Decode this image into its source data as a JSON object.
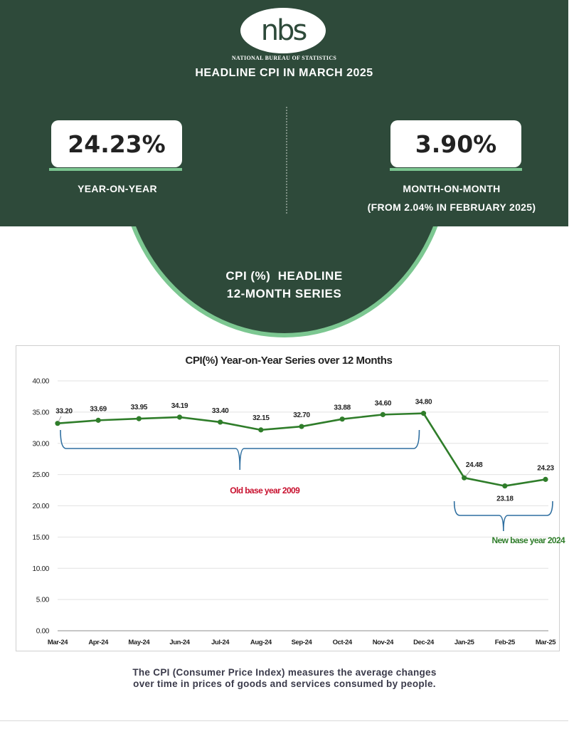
{
  "header": {
    "logo_text": "nbs",
    "org_name": "NATIONAL BUREAU OF STATISTICS",
    "title": "HEADLINE CPI IN MARCH 2025"
  },
  "kpis": {
    "yoy_value": "24.23%",
    "yoy_label": "YEAR-ON-YEAR",
    "mom_value": "3.90%",
    "mom_label": "MONTH-ON-MONTH",
    "mom_sublabel": "(FROM 2.04% IN FEBRUARY 2025)"
  },
  "series_banner": {
    "line1": "CPI (%)  HEADLINE",
    "line2": "12-MONTH SERIES"
  },
  "chart_data": {
    "type": "line",
    "title": "CPI(%) Year-on-Year Series over 12 Months",
    "xlabel": "",
    "ylabel": "",
    "categories": [
      "Mar-24",
      "Apr-24",
      "May-24",
      "Jun-24",
      "Jul-24",
      "Aug-24",
      "Sep-24",
      "Oct-24",
      "Nov-24",
      "Dec-24",
      "Jan-25",
      "Feb-25",
      "Mar-25"
    ],
    "values": [
      33.2,
      33.69,
      33.95,
      34.19,
      33.4,
      32.15,
      32.7,
      33.88,
      34.6,
      34.8,
      24.48,
      23.18,
      24.23
    ],
    "value_labels": [
      "33.20",
      "33.69",
      "33.95",
      "34.19",
      "33.40",
      "32.15",
      "32.70",
      "33.88",
      "34.60",
      "34.80",
      "24.48",
      "23.18",
      "24.23"
    ],
    "ylim": [
      0,
      40
    ],
    "yticks": [
      "0.00",
      "5.00",
      "10.00",
      "15.00",
      "20.00",
      "25.00",
      "30.00",
      "35.00",
      "40.00"
    ],
    "grid": true,
    "legend": "none",
    "line_color": "#2f7d2a",
    "annotations": [
      {
        "text": "Old base year 2009",
        "color": "#c8102e",
        "from": "Mar-24",
        "to": "Dec-24"
      },
      {
        "text": "New base year 2024",
        "color": "#2f7d2a",
        "from": "Jan-25",
        "to": "Mar-25"
      }
    ]
  },
  "footer": {
    "line1": "The CPI (Consumer Price Index) measures the average changes",
    "line2": "over time in prices of goods and services consumed by people."
  },
  "colors": {
    "dark_green": "#2e4a3a",
    "accent_green": "#7cc791",
    "bracket_blue": "#2f6fa0"
  }
}
